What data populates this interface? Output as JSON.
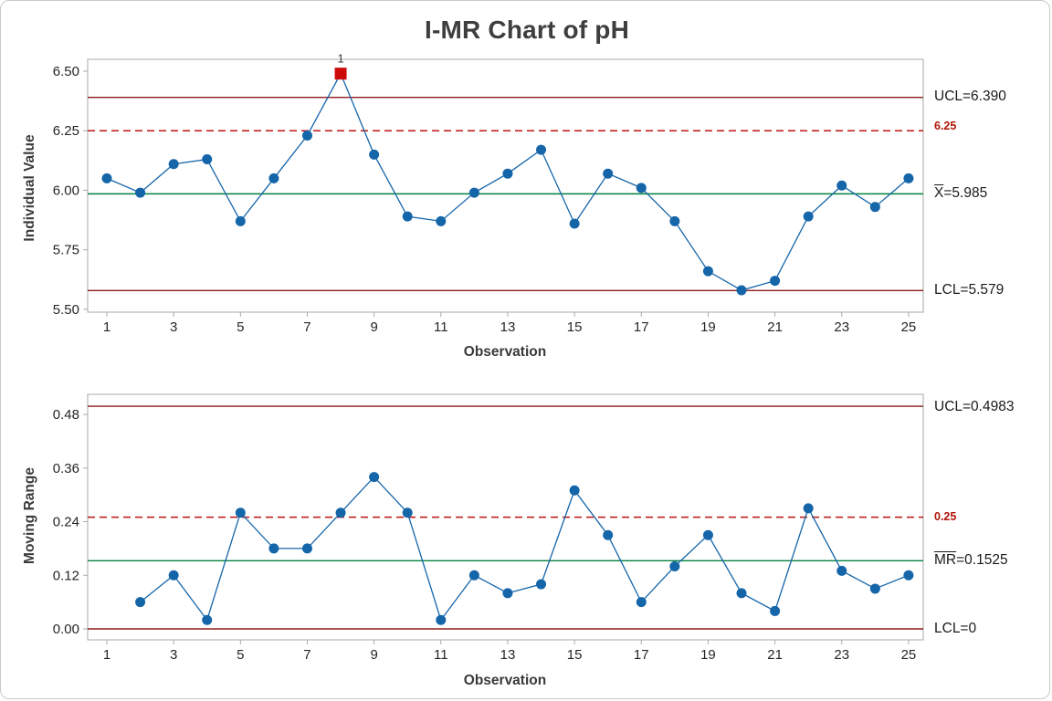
{
  "title": "I-MR Chart of pH",
  "panels": {
    "individuals": {
      "ylabel": "Individual Value",
      "xlabel": "Observation",
      "annotations": {
        "ucl": "UCL=6.390",
        "spec": "6.25",
        "center_prefix": "X",
        "center_suffix": "=5.985",
        "lcl": "LCL=5.579"
      }
    },
    "moving_range": {
      "ylabel": "Moving Range",
      "xlabel": "Observation",
      "annotations": {
        "ucl": "UCL=0.4983",
        "spec": "0.25",
        "center_prefix": "MR",
        "center_suffix": "=0.1525",
        "lcl": "LCL=0"
      }
    }
  },
  "colors": {
    "series": "#1565a9",
    "control_limit": "#8e1b1b",
    "center_line": "#00823e",
    "spec_line": "#be1210",
    "out_of_control": "#ce0b0b",
    "ooc_label": "#3a3a3a",
    "frame": "#a9a9a9",
    "tick_text": "#262626"
  },
  "chart_data": [
    {
      "type": "line",
      "name": "Individuals",
      "title": "I-MR Chart of pH",
      "xlabel": "Observation",
      "ylabel": "Individual Value",
      "x": [
        1,
        2,
        3,
        4,
        5,
        6,
        7,
        8,
        9,
        10,
        11,
        12,
        13,
        14,
        15,
        16,
        17,
        18,
        19,
        20,
        21,
        22,
        23,
        24,
        25
      ],
      "values": [
        6.05,
        5.99,
        6.11,
        6.13,
        5.87,
        6.05,
        6.23,
        6.49,
        6.15,
        5.89,
        5.87,
        5.99,
        6.07,
        6.17,
        5.86,
        6.07,
        6.01,
        5.87,
        5.66,
        5.58,
        5.62,
        5.89,
        6.02,
        5.93,
        6.05
      ],
      "out_of_control": [
        {
          "x": 8,
          "y": 6.49,
          "label": "1"
        }
      ],
      "reference_lines": [
        {
          "name": "UCL",
          "value": 6.39,
          "style": "solid",
          "color_key": "control_limit",
          "label": "UCL=6.390"
        },
        {
          "name": "upper_spec",
          "value": 6.25,
          "style": "dashed",
          "color_key": "spec_line",
          "label": "6.25"
        },
        {
          "name": "center",
          "value": 5.985,
          "style": "solid",
          "color_key": "center_line",
          "label": "X=5.985"
        },
        {
          "name": "LCL",
          "value": 5.579,
          "style": "solid",
          "color_key": "control_limit",
          "label": "LCL=5.579"
        }
      ],
      "ytick_values": [
        6.5,
        6.25,
        6.0,
        5.75,
        5.5
      ],
      "ytick_labels": [
        "6.50",
        "6.25",
        "6.00",
        "5.75",
        "5.50"
      ],
      "xticks": [
        1,
        3,
        5,
        7,
        9,
        11,
        13,
        15,
        17,
        19,
        21,
        23,
        25
      ],
      "ylim": [
        5.488,
        6.55
      ],
      "xlim": [
        0.5,
        25.5
      ],
      "grid": false,
      "legend": "none"
    },
    {
      "type": "line",
      "name": "Moving Range",
      "title": "",
      "xlabel": "Observation",
      "ylabel": "Moving Range",
      "x": [
        2,
        3,
        4,
        5,
        6,
        7,
        8,
        9,
        10,
        11,
        12,
        13,
        14,
        15,
        16,
        17,
        18,
        19,
        20,
        21,
        22,
        23,
        24,
        25
      ],
      "values": [
        0.06,
        0.12,
        0.02,
        0.26,
        0.18,
        0.18,
        0.26,
        0.34,
        0.26,
        0.02,
        0.12,
        0.08,
        0.1,
        0.31,
        0.21,
        0.06,
        0.14,
        0.21,
        0.08,
        0.04,
        0.27,
        0.13,
        0.09,
        0.12
      ],
      "out_of_control": [],
      "reference_lines": [
        {
          "name": "UCL",
          "value": 0.4983,
          "style": "solid",
          "color_key": "control_limit",
          "label": "UCL=0.4983"
        },
        {
          "name": "upper_spec",
          "value": 0.25,
          "style": "dashed",
          "color_key": "spec_line",
          "label": "0.25"
        },
        {
          "name": "center",
          "value": 0.1525,
          "style": "solid",
          "color_key": "center_line",
          "label": "MR=0.1525"
        },
        {
          "name": "LCL",
          "value": 0,
          "style": "solid",
          "color_key": "control_limit",
          "label": "LCL=0"
        }
      ],
      "ytick_values": [
        0.48,
        0.36,
        0.24,
        0.12,
        0.0
      ],
      "ytick_labels": [
        "0.48",
        "0.36",
        "0.24",
        "0.12",
        "0.00"
      ],
      "xticks": [
        1,
        3,
        5,
        7,
        9,
        11,
        13,
        15,
        17,
        19,
        21,
        23,
        25
      ],
      "ylim": [
        -0.0245,
        0.525
      ],
      "xlim": [
        0.5,
        25.5
      ],
      "grid": false,
      "legend": "none"
    }
  ]
}
